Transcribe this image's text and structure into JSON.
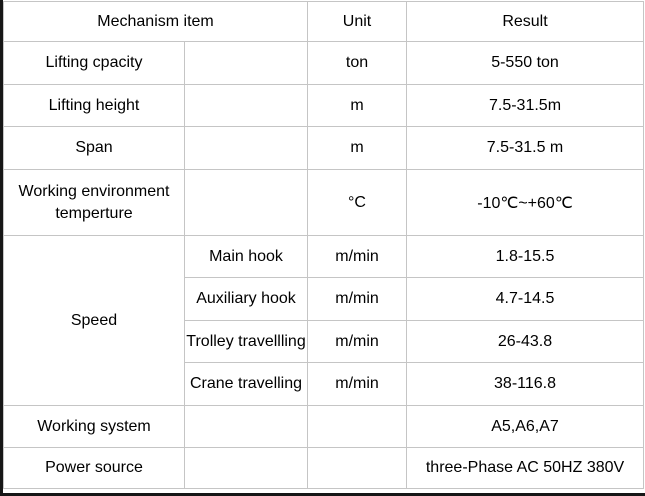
{
  "colors": {
    "background": "#ffffff",
    "grid_line": "#c5c5c5",
    "text": "#000000",
    "edge_border": "#161616"
  },
  "table": {
    "header": {
      "mechanism_item": "Mechanism item",
      "unit": "Unit",
      "result": "Result"
    },
    "rows": [
      {
        "item": "Lifting cpacity",
        "sub": "",
        "unit": "ton",
        "result": "5-550 ton"
      },
      {
        "item": "Lifting height",
        "sub": "",
        "unit": "m",
        "result": "7.5-31.5m"
      },
      {
        "item": "Span",
        "sub": "",
        "unit": "m",
        "result": "7.5-31.5 m"
      },
      {
        "item": "Working environment temperture",
        "sub": "",
        "unit": "°C",
        "result": "-10℃~+60℃"
      },
      {
        "item": "Speed",
        "sub": "Main hook",
        "unit": "m/min",
        "result": "1.8-15.5"
      },
      {
        "sub": "Auxiliary hook",
        "unit": "m/min",
        "result": "4.7-14.5"
      },
      {
        "sub": "Trolley travellling",
        "unit": "m/min",
        "result": "26-43.8"
      },
      {
        "sub": "Crane travelling",
        "unit": "m/min",
        "result": "38-116.8"
      },
      {
        "item": "Working system",
        "sub": "",
        "unit": "",
        "result": "A5,A6,A7"
      },
      {
        "item": "Power source",
        "sub": "",
        "unit": "",
        "result": "three-Phase AC 50HZ 380V"
      }
    ]
  }
}
